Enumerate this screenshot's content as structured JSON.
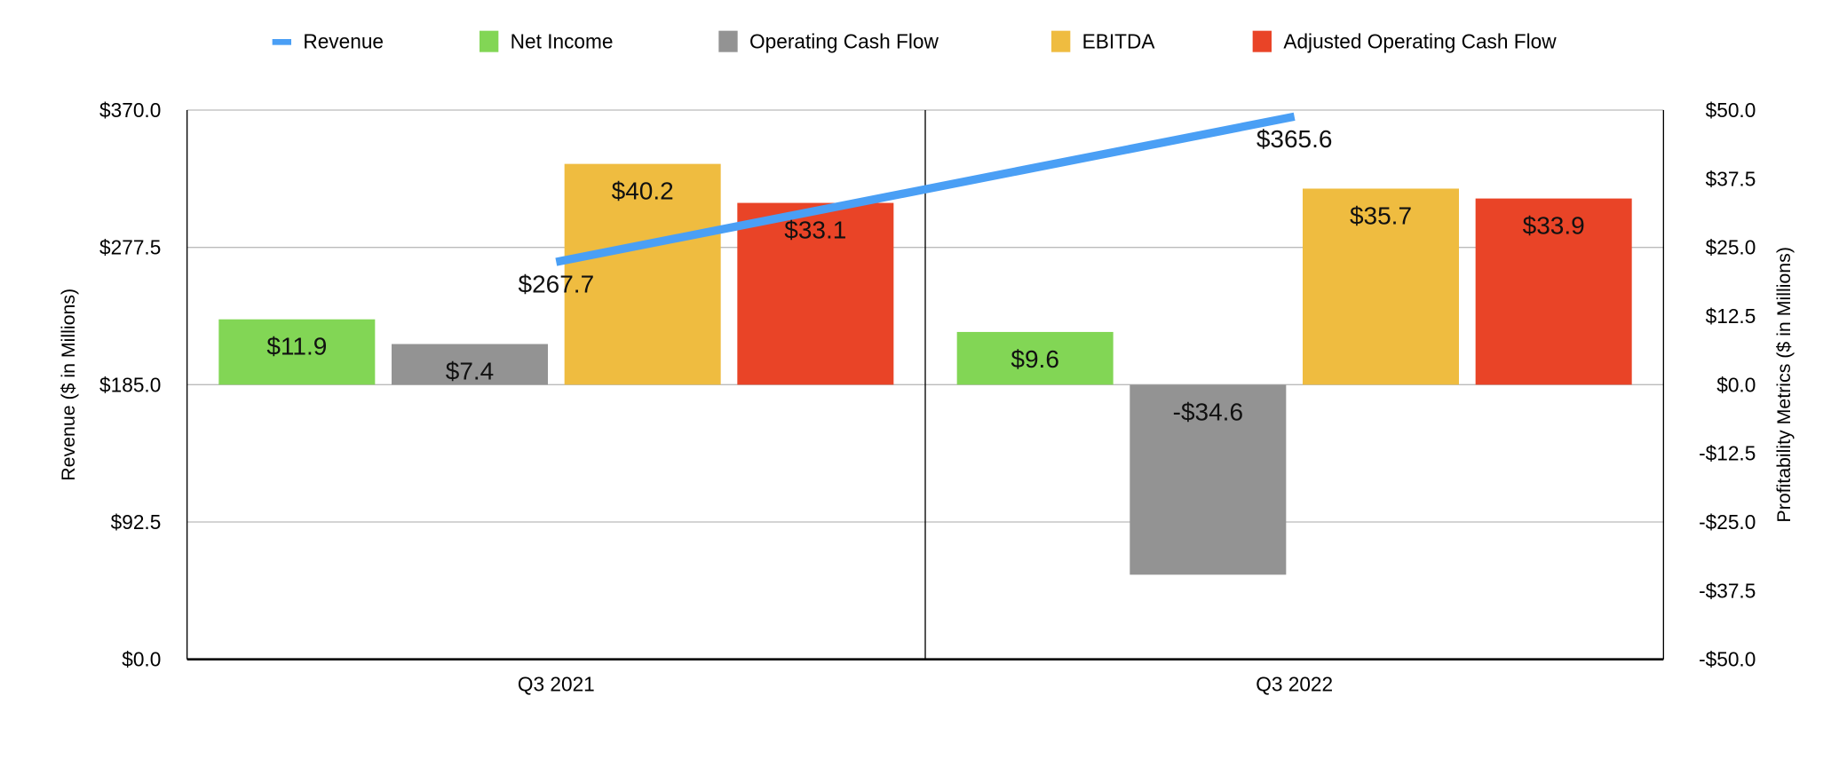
{
  "chart_data": {
    "type": "bar+line",
    "categories": [
      "Q3 2021",
      "Q3 2022"
    ],
    "legend_position": "top",
    "grid": true,
    "left_axis": {
      "label": "Revenue ($ in Millions)",
      "range": [
        0,
        370
      ],
      "ticks": [
        "$0.0",
        "$92.5",
        "$185.0",
        "$277.5",
        "$370.0"
      ]
    },
    "right_axis": {
      "label": "Profitability Metrics ($ in Millions)",
      "range": [
        -50,
        50
      ],
      "ticks": [
        "-$50.0",
        "-$37.5",
        "-$25.0",
        "-$12.5",
        "$0.0",
        "$12.5",
        "$25.0",
        "$37.5",
        "$50.0"
      ]
    },
    "line_series": {
      "name": "Revenue",
      "axis": "left",
      "color": "#4a9ff5",
      "values": [
        267.7,
        365.6
      ],
      "labels": [
        "$267.7",
        "$365.6"
      ]
    },
    "series": [
      {
        "name": "Net Income",
        "axis": "right",
        "color": "#82d655",
        "values": [
          11.9,
          9.6
        ],
        "labels": [
          "$11.9",
          "$9.6"
        ]
      },
      {
        "name": "Operating Cash Flow",
        "axis": "right",
        "color": "#939393",
        "values": [
          7.4,
          -34.6
        ],
        "labels": [
          "$7.4",
          "-$34.6"
        ]
      },
      {
        "name": "EBITDA",
        "axis": "right",
        "color": "#efbc40",
        "values": [
          40.2,
          35.7
        ],
        "labels": [
          "$40.2",
          "$35.7"
        ]
      },
      {
        "name": "Adjusted Operating Cash Flow",
        "axis": "right",
        "color": "#e94427",
        "values": [
          33.1,
          33.9
        ],
        "labels": [
          "$33.1",
          "$33.9"
        ]
      }
    ]
  }
}
